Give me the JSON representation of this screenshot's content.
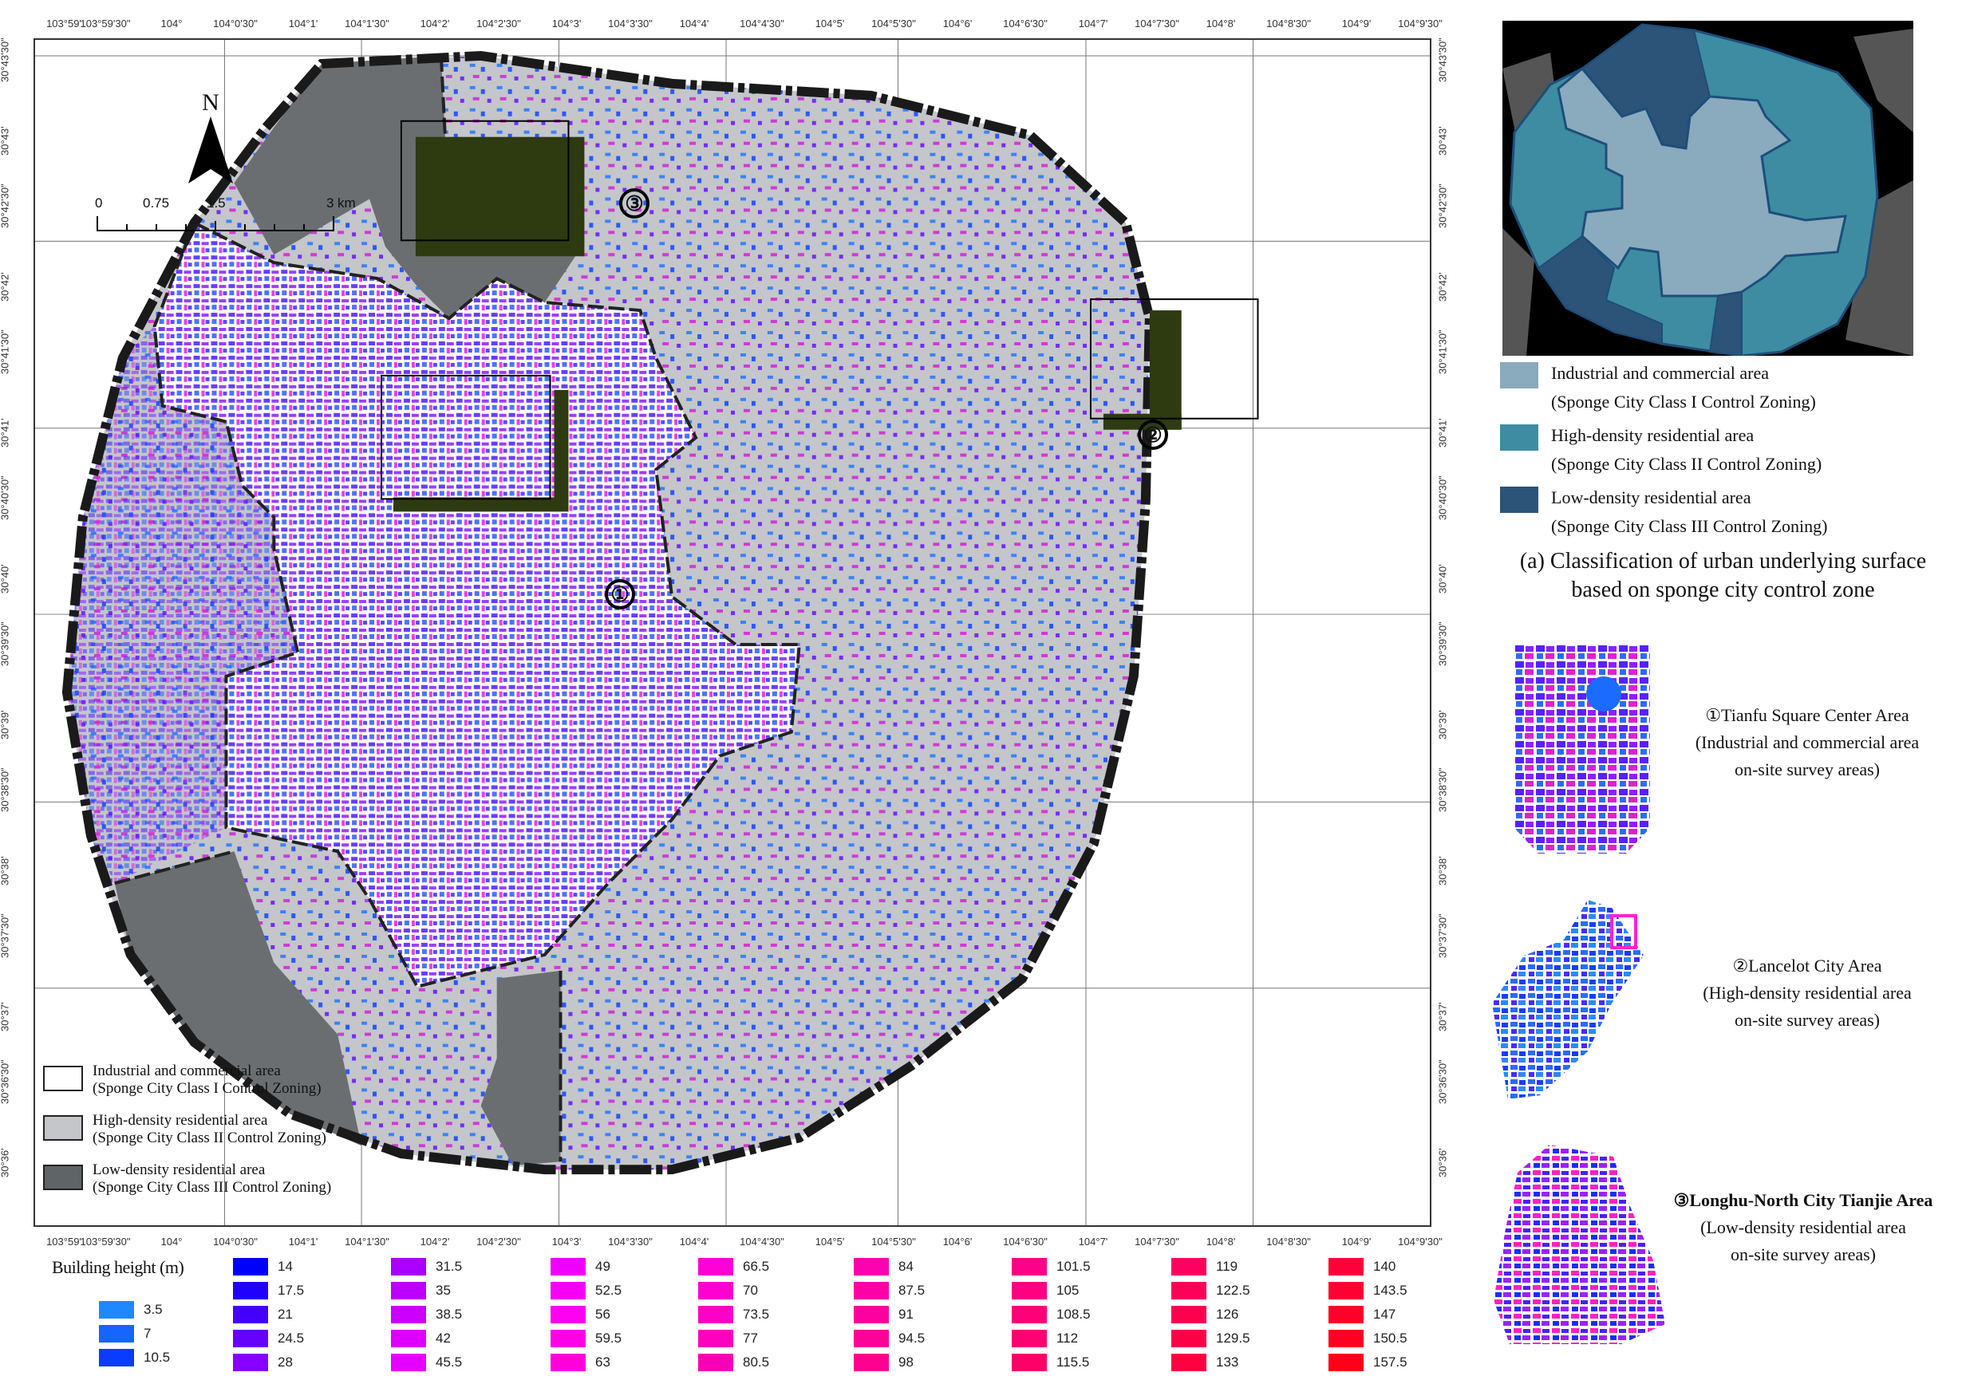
{
  "map": {
    "north_label": "N",
    "scale": {
      "labels": [
        "0",
        "0.75",
        "1.5",
        "3"
      ],
      "unit": "km"
    },
    "axes": {
      "top": [
        "103°59'",
        "103°59'30\"",
        "104°",
        "104°0'30\"",
        "104°1'",
        "104°1'30\"",
        "104°2'",
        "104°2'30\"",
        "104°3'",
        "104°3'30\"",
        "104°4'",
        "104°4'30\"",
        "104°5'",
        "104°5'30\"",
        "104°6'",
        "104°6'30\"",
        "104°7'",
        "104°7'30\"",
        "104°8'",
        "104°8'30\"",
        "104°9'",
        "104°9'30\""
      ],
      "bottom": [
        "103°59'",
        "103°59'30\"",
        "104°",
        "104°0'30\"",
        "104°1'",
        "104°1'30\"",
        "104°2'",
        "104°2'30\"",
        "104°3'",
        "104°3'30\"",
        "104°4'",
        "104°4'30\"",
        "104°5'",
        "104°5'30\"",
        "104°6'",
        "104°6'30\"",
        "104°7'",
        "104°7'30\"",
        "104°8'",
        "104°8'30\"",
        "104°9'",
        "104°9'30\""
      ],
      "left": [
        "30°43'30\"",
        "30°43'",
        "30°42'30\"",
        "30°42'",
        "30°41'30\"",
        "30°41'",
        "30°40'30\"",
        "30°40'",
        "30°39'30\"",
        "30°39'",
        "30°38'30\"",
        "30°38'",
        "30°37'30\"",
        "30°37'",
        "30°36'30\"",
        "30°36'"
      ],
      "right": [
        "30°43'30\"",
        "30°43'",
        "30°42'30\"",
        "30°42'",
        "30°41'30\"",
        "30°41'",
        "30°40'30\"",
        "30°40'",
        "30°39'30\"",
        "30°39'",
        "30°38'30\"",
        "30°38'",
        "30°37'30\"",
        "30°37'",
        "30°36'30\"",
        "30°36'"
      ]
    },
    "survey_markers": [
      {
        "num": "①",
        "name": "tianfu-square"
      },
      {
        "num": "②",
        "name": "lancelot-city"
      },
      {
        "num": "③",
        "name": "longhu-north-city"
      }
    ],
    "legend": [
      {
        "line1": "Industrial and commercial area",
        "line2": "(Sponge City Class I Control Zoning)",
        "color": "#ffffff"
      },
      {
        "line1": "High-density residential area",
        "line2": "(Sponge City Class II Control Zoning)",
        "color": "#c4c6ca"
      },
      {
        "line1": "Low-density residential area",
        "line2": "(Sponge City Class III Control Zoning)",
        "color": "#5f6466"
      }
    ]
  },
  "height_legend": {
    "title": "Building height (m)",
    "columns": [
      [
        {
          "v": "3.5",
          "c": "#1e88ff"
        },
        {
          "v": "7",
          "c": "#1565ff"
        },
        {
          "v": "10.5",
          "c": "#0a3cff"
        }
      ],
      [
        {
          "v": "14",
          "c": "#0000ff"
        },
        {
          "v": "17.5",
          "c": "#2200ff"
        },
        {
          "v": "21",
          "c": "#4400ff"
        },
        {
          "v": "24.5",
          "c": "#6600ff"
        },
        {
          "v": "28",
          "c": "#8800ff"
        }
      ],
      [
        {
          "v": "31.5",
          "c": "#aa00ff"
        },
        {
          "v": "35",
          "c": "#bb00ff"
        },
        {
          "v": "38.5",
          "c": "#cc00ff"
        },
        {
          "v": "42",
          "c": "#dd00ff"
        },
        {
          "v": "45.5",
          "c": "#e600ff"
        }
      ],
      [
        {
          "v": "49",
          "c": "#f000ff"
        },
        {
          "v": "52.5",
          "c": "#f500f5"
        },
        {
          "v": "56",
          "c": "#ff00f0"
        },
        {
          "v": "59.5",
          "c": "#ff00e6"
        },
        {
          "v": "63",
          "c": "#ff00dd"
        }
      ],
      [
        {
          "v": "66.5",
          "c": "#ff00d6"
        },
        {
          "v": "70",
          "c": "#ff00d0"
        },
        {
          "v": "73.5",
          "c": "#ff00c8"
        },
        {
          "v": "77",
          "c": "#ff00c0"
        },
        {
          "v": "80.5",
          "c": "#f700b8"
        }
      ],
      [
        {
          "v": "84",
          "c": "#ff00b0"
        },
        {
          "v": "87.5",
          "c": "#ff00a8"
        },
        {
          "v": "91",
          "c": "#ff00a0"
        },
        {
          "v": "94.5",
          "c": "#ff0098"
        },
        {
          "v": "98",
          "c": "#ff0090"
        }
      ],
      [
        {
          "v": "101.5",
          "c": "#ff0088"
        },
        {
          "v": "105",
          "c": "#ff0080"
        },
        {
          "v": "108.5",
          "c": "#ff0078"
        },
        {
          "v": "112",
          "c": "#ff0070"
        },
        {
          "v": "115.5",
          "c": "#ff0068"
        }
      ],
      [
        {
          "v": "119",
          "c": "#ff0060"
        },
        {
          "v": "122.5",
          "c": "#ff0058"
        },
        {
          "v": "126",
          "c": "#ff0050"
        },
        {
          "v": "129.5",
          "c": "#ff0048"
        },
        {
          "v": "133",
          "c": "#ff0040"
        }
      ],
      [
        {
          "v": "140",
          "c": "#ff0038"
        },
        {
          "v": "143.5",
          "c": "#ff0030"
        },
        {
          "v": "147",
          "c": "#ff0028"
        },
        {
          "v": "150.5",
          "c": "#ff0020"
        },
        {
          "v": "157.5",
          "c": "#ff0018"
        }
      ]
    ]
  },
  "inset": {
    "legend": [
      {
        "line1": "Industrial and commercial area",
        "line2": "(Sponge City Class I Control Zoning)",
        "color": "#8aaabe"
      },
      {
        "line1": "High-density residential area",
        "line2": "(Sponge City Class II Control Zoning)",
        "color": "#3e8ca2"
      },
      {
        "line1": "Low-density residential area",
        "line2": "(Sponge City Class III Control Zoning)",
        "color": "#2c5478"
      }
    ],
    "caption_line1": "(a) Classification of urban underlying surface",
    "caption_line2": "based on sponge city control zone"
  },
  "survey_areas": [
    {
      "title": "①Tianfu Square Center Area",
      "line2": "(Industrial and commercial area",
      "line3": "on-site survey areas)"
    },
    {
      "title": "②Lancelot City Area",
      "line2": "(High-density residential area",
      "line3": "on-site survey areas)"
    },
    {
      "title": "③Longhu-North City Tianjie Area",
      "line2": "(Low-density residential area",
      "line3": "on-site survey areas)"
    }
  ]
}
